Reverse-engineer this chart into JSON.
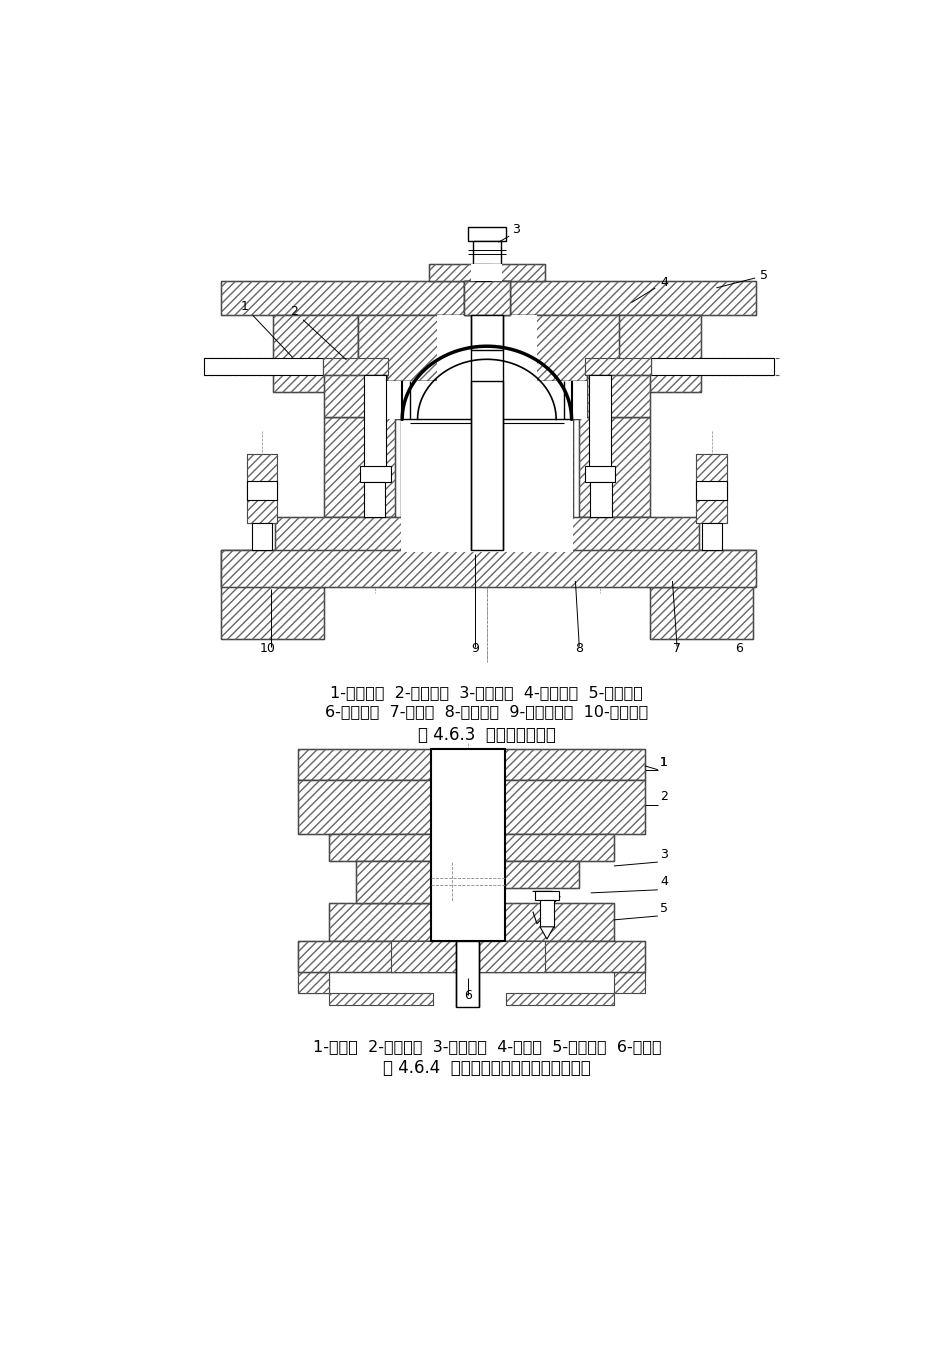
{
  "fig_bg": "#ffffff",
  "title1": "图 4.6.3  落料拉深复合模",
  "title2": "图 4.6.4  双动压力机上使用的首次拉深模",
  "caption1_line1": "1-导料板；  2-卸料板；  3-打料杆；  4-凸凹模；  5-上模座；",
  "caption1_line2": "6-下模座；  7-顶杆；  8-压边圈；  9-拉深凸模；  10-落料凹模",
  "caption2_line1": "1-凸模；  2-上模座；  3-压边圈；  4-凹模；  5-上模座；  6-顶件块",
  "lc": "#000000",
  "hc": "#666666",
  "font_size_caption": 11.5,
  "font_size_title": 12,
  "font_size_label": 9
}
